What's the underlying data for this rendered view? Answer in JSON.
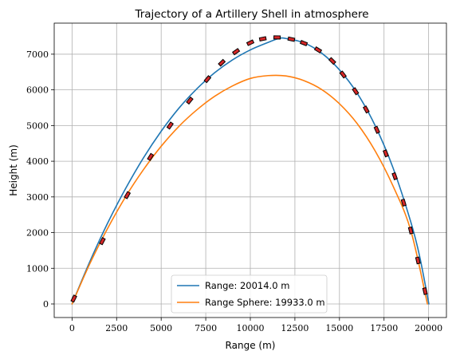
{
  "chart_data": {
    "type": "line",
    "title": "Trajectory of a Artillery Shell in atmosphere",
    "xlabel": "Range (m)",
    "ylabel": "Height (m)",
    "xlim": [
      -1000,
      21000
    ],
    "ylim": [
      -380,
      7870
    ],
    "xticks": [
      0,
      2500,
      5000,
      7500,
      10000,
      12500,
      15000,
      17500,
      20000
    ],
    "yticks": [
      0,
      1000,
      2000,
      3000,
      4000,
      5000,
      6000,
      7000
    ],
    "grid": true,
    "legend_position": "bottom-center",
    "series": [
      {
        "name": "Range: 20014.0 m",
        "color": "#1f77b4",
        "style": "solid",
        "x": [
          0,
          1000,
          2000,
          3000,
          4000,
          5000,
          6000,
          7000,
          8000,
          9000,
          10000,
          11000,
          11600,
          12000,
          13000,
          14000,
          15000,
          16000,
          17000,
          18000,
          19000,
          19500,
          20014
        ],
        "y": [
          0,
          1190,
          2270,
          3230,
          4090,
          4840,
          5490,
          6030,
          6480,
          6840,
          7120,
          7330,
          7440,
          7440,
          7320,
          7030,
          6560,
          5900,
          5000,
          3820,
          2300,
          1330,
          0
        ]
      },
      {
        "name": "Range Sphere: 19933.0 m",
        "color": "#ff7f0e",
        "style": "solid",
        "x": [
          0,
          1000,
          2000,
          3000,
          4000,
          5000,
          6000,
          7000,
          8000,
          9000,
          10000,
          11000,
          12000,
          13000,
          14000,
          15000,
          16000,
          17000,
          18000,
          19000,
          19933
        ],
        "y": [
          0,
          1130,
          2120,
          3000,
          3760,
          4420,
          4980,
          5440,
          5820,
          6110,
          6320,
          6400,
          6390,
          6260,
          6010,
          5610,
          5050,
          4290,
          3310,
          2060,
          0
        ]
      },
      {
        "name": "",
        "color": "#d62728",
        "style": "dashed-markers",
        "x": [
          100,
          1700,
          3100,
          4400,
          5500,
          6600,
          7600,
          8400,
          9200,
          10000,
          10700,
          11500,
          12300,
          13000,
          13800,
          14600,
          15200,
          15900,
          16500,
          17100,
          17600,
          18100,
          18600,
          19000,
          19400,
          19800
        ],
        "y": [
          150,
          1760,
          3050,
          4120,
          5000,
          5700,
          6300,
          6760,
          7070,
          7320,
          7430,
          7470,
          7420,
          7310,
          7120,
          6810,
          6430,
          5960,
          5450,
          4880,
          4220,
          3580,
          2840,
          2060,
          1220,
          360
        ]
      }
    ]
  }
}
